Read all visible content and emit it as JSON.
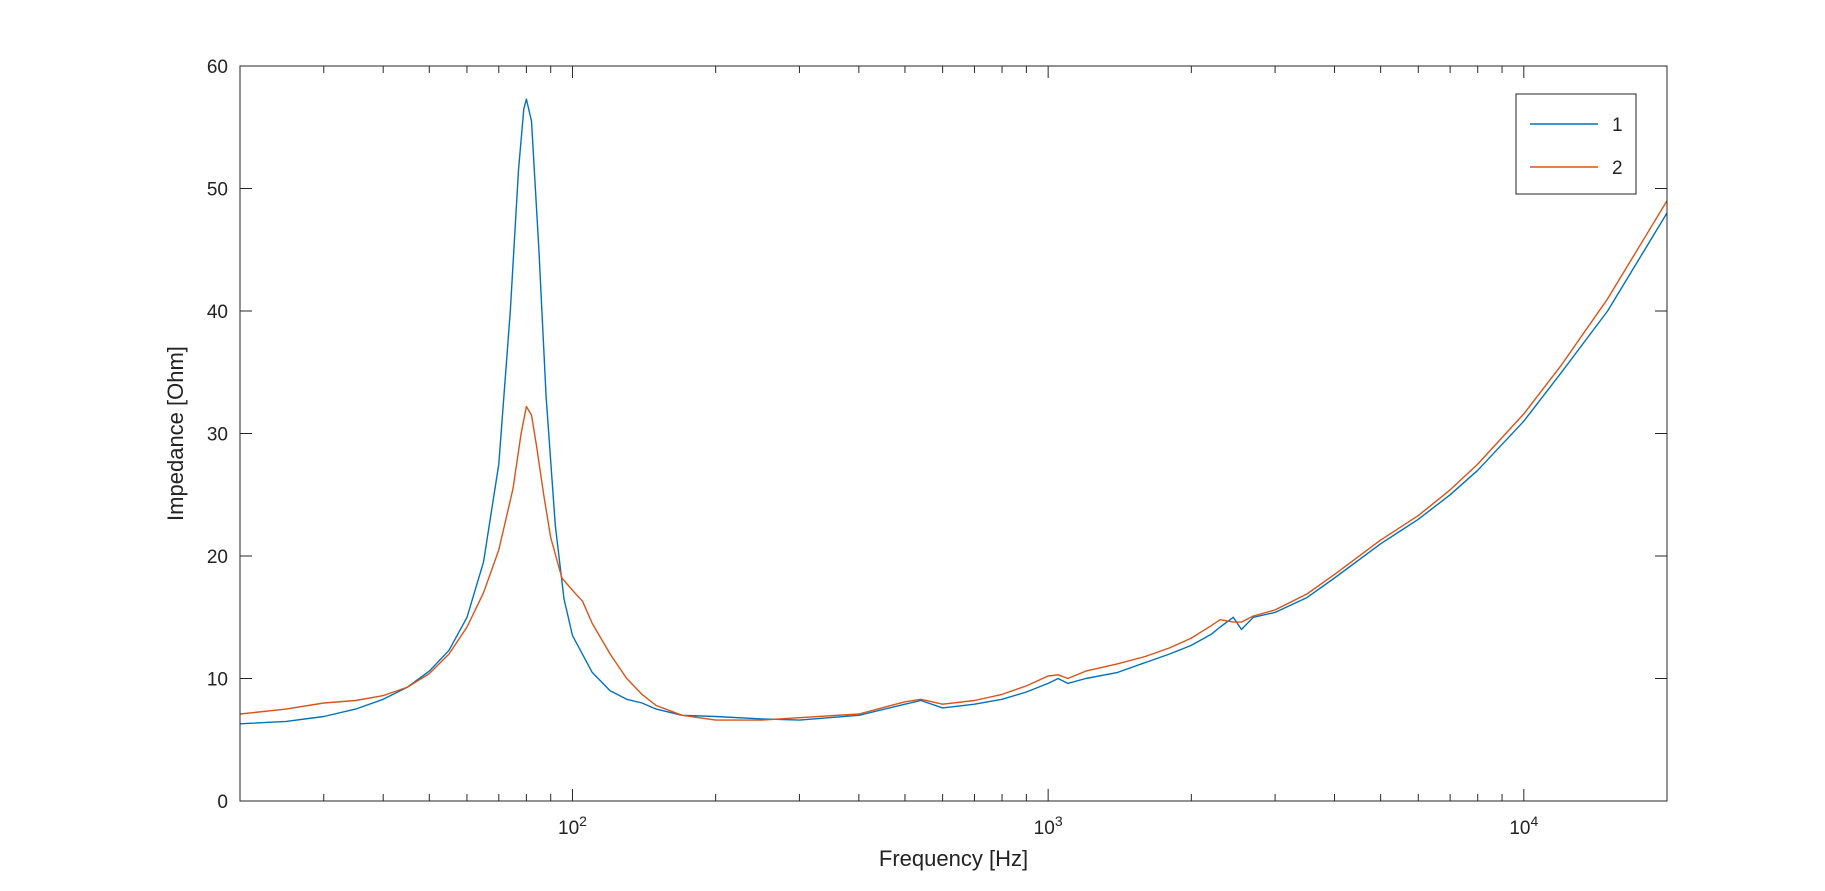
{
  "chart_data": {
    "type": "line",
    "title": "",
    "xlabel": "Frequency [Hz]",
    "ylabel": "Impedance [Ohm]",
    "xscale": "log",
    "xlim": [
      20,
      20000
    ],
    "ylim": [
      0,
      60
    ],
    "xticks": [
      {
        "value": 100,
        "base": "10",
        "exp": "2"
      },
      {
        "value": 1000,
        "base": "10",
        "exp": "3"
      },
      {
        "value": 10000,
        "base": "10",
        "exp": "4"
      }
    ],
    "yticks": [
      0,
      10,
      20,
      30,
      40,
      50,
      60
    ],
    "grid": false,
    "box": true,
    "legend": {
      "position": "top-right"
    },
    "series": [
      {
        "name": "1",
        "color": "#0072BD",
        "x": [
          20,
          25,
          30,
          35,
          40,
          45,
          50,
          55,
          60,
          65,
          70,
          74,
          77,
          79,
          80,
          82,
          85,
          88,
          92,
          96,
          100,
          110,
          120,
          130,
          140,
          150,
          170,
          200,
          250,
          300,
          400,
          500,
          540,
          600,
          700,
          800,
          900,
          1000,
          1050,
          1100,
          1200,
          1400,
          1600,
          1800,
          2000,
          2200,
          2300,
          2450,
          2550,
          2700,
          3000,
          3500,
          4000,
          5000,
          6000,
          7000,
          8000,
          10000,
          12000,
          15000,
          20000
        ],
        "y": [
          6.3,
          6.5,
          6.9,
          7.5,
          8.3,
          9.3,
          10.6,
          12.3,
          15.0,
          19.5,
          27.5,
          40.0,
          51.5,
          56.5,
          57.3,
          55.5,
          45.0,
          33.0,
          22.5,
          16.5,
          13.5,
          10.5,
          9.0,
          8.3,
          8.0,
          7.5,
          7.0,
          6.9,
          6.7,
          6.6,
          7.0,
          7.9,
          8.2,
          7.6,
          7.9,
          8.3,
          8.9,
          9.6,
          10.0,
          9.6,
          10.0,
          10.5,
          11.3,
          12.0,
          12.7,
          13.6,
          14.2,
          15.0,
          14.0,
          15.0,
          15.4,
          16.6,
          18.2,
          21.0,
          23.0,
          25.0,
          27.0,
          31.0,
          35.0,
          40.0,
          48.0
        ]
      },
      {
        "name": "2",
        "color": "#D95319",
        "x": [
          20,
          25,
          30,
          35,
          40,
          45,
          50,
          55,
          60,
          65,
          70,
          75,
          78,
          80,
          82,
          84,
          87,
          90,
          95,
          100,
          105,
          110,
          120,
          130,
          140,
          150,
          170,
          200,
          250,
          300,
          400,
          500,
          540,
          600,
          700,
          800,
          900,
          1000,
          1050,
          1100,
          1200,
          1400,
          1600,
          1800,
          2000,
          2200,
          2300,
          2450,
          2550,
          2700,
          3000,
          3500,
          4000,
          5000,
          6000,
          7000,
          8000,
          10000,
          12000,
          15000,
          20000
        ],
        "y": [
          7.1,
          7.5,
          8.0,
          8.2,
          8.6,
          9.3,
          10.4,
          12.0,
          14.2,
          17.0,
          20.5,
          25.5,
          30.0,
          32.2,
          31.5,
          29.0,
          25.0,
          21.5,
          18.2,
          17.2,
          16.3,
          14.5,
          12.0,
          10.0,
          8.7,
          7.8,
          7.0,
          6.6,
          6.6,
          6.8,
          7.1,
          8.1,
          8.3,
          7.9,
          8.2,
          8.7,
          9.4,
          10.2,
          10.3,
          10.0,
          10.6,
          11.2,
          11.8,
          12.5,
          13.3,
          14.3,
          14.8,
          14.6,
          14.6,
          15.1,
          15.6,
          16.9,
          18.5,
          21.3,
          23.3,
          25.4,
          27.5,
          31.6,
          35.6,
          41.0,
          49.0
        ]
      }
    ]
  }
}
